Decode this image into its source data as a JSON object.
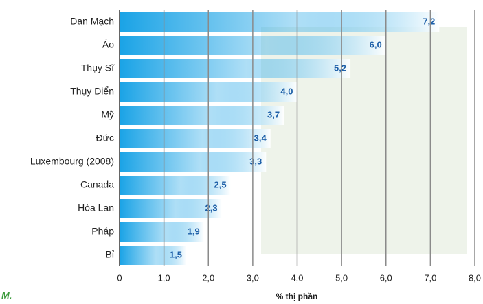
{
  "chart_data": {
    "type": "bar",
    "orientation": "horizontal",
    "categories": [
      "Đan Mạch",
      "Áo",
      "Thụy Sĩ",
      "Thụy Điển",
      "Mỹ",
      "Đức",
      "Luxembourg (2008)",
      "Canada",
      "Hòa Lan",
      "Pháp",
      "Bỉ"
    ],
    "values": [
      7.2,
      6.0,
      5.2,
      4.0,
      3.7,
      3.4,
      3.3,
      2.5,
      2.3,
      1.9,
      1.5
    ],
    "value_labels": [
      "7,2",
      "6,0",
      "5,2",
      "4,0",
      "3,7",
      "3,4",
      "3,3",
      "2,5",
      "2,3",
      "1,9",
      "1,5"
    ],
    "color": "#1aa3e6",
    "xlim": [
      0,
      8
    ],
    "xticks": [
      0,
      {
        "value": 1,
        "label": "1,0"
      },
      {
        "value": 2,
        "label": "2,0"
      },
      {
        "value": 3,
        "label": "3,0"
      },
      {
        "value": 4,
        "label": "4,0"
      },
      {
        "value": 5,
        "label": "5,0"
      },
      {
        "value": 6,
        "label": "6,0"
      },
      {
        "value": 7,
        "label": "7,0"
      },
      {
        "value": 8,
        "label": "8,0"
      }
    ],
    "xlabel": "% thị phần",
    "note": "M.",
    "grid": true
  }
}
